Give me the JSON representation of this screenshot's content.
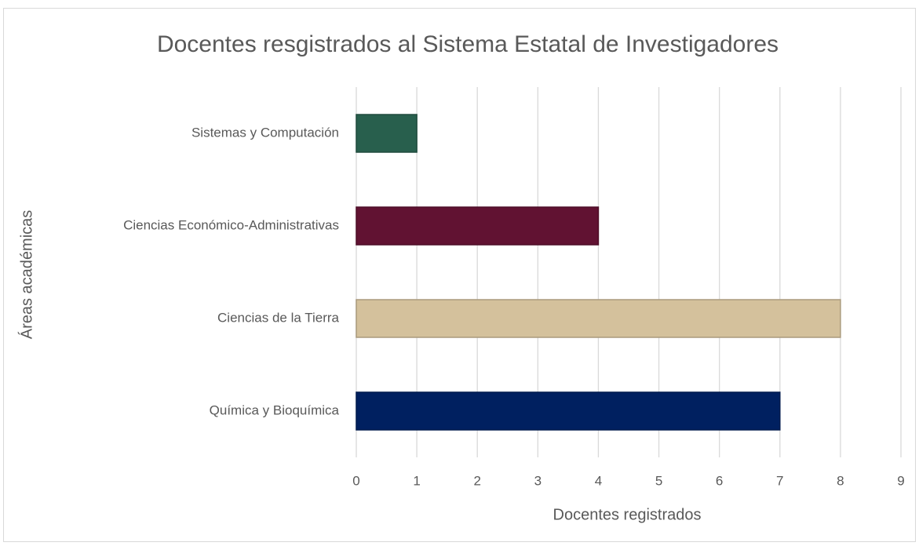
{
  "chart_data": {
    "type": "bar",
    "orientation": "horizontal",
    "title": "Docentes resgistrados al Sistema Estatal de Investigadores",
    "x_label": "Docentes registrados",
    "y_label": "Áreas académicas",
    "categories": [
      "Sistemas y Computación",
      "Ciencias Económico-Administrativas",
      "Ciencias de la Tierra",
      "Química y Bioquímica"
    ],
    "values": [
      1,
      4,
      8,
      7
    ],
    "colors": [
      "#285f4d",
      "#611232",
      "#d4c19c",
      "#002060"
    ],
    "xlim": [
      0,
      9
    ],
    "xticks": [
      0,
      1,
      2,
      3,
      4,
      5,
      6,
      7,
      8,
      9
    ],
    "grid": true
  }
}
